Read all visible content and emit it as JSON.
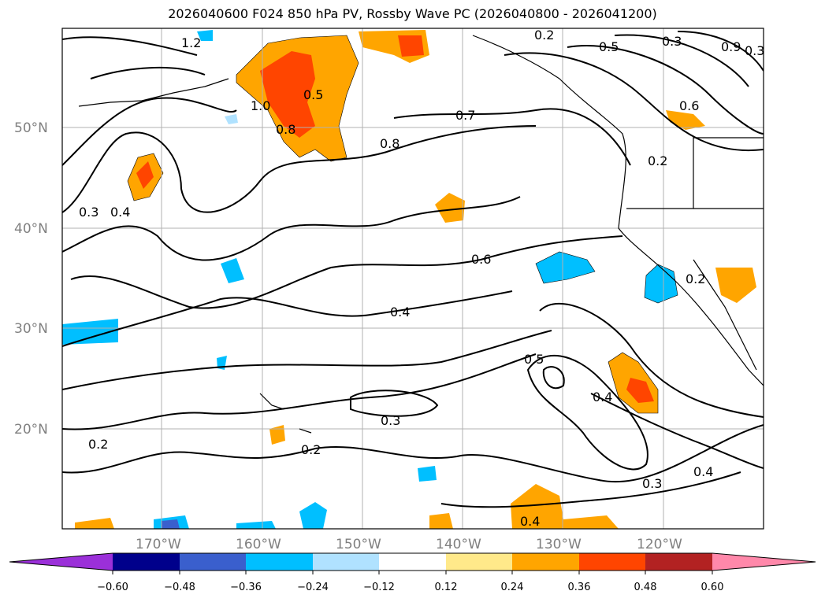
{
  "title": "2026040600 F024 850 hPa PV, Rossby Wave PC (2026040800 - 2026041200)",
  "map": {
    "lat_labels": [
      "50°N",
      "40°N",
      "30°N",
      "20°N"
    ],
    "lon_labels": [
      "170°W",
      "160°W",
      "150°W",
      "140°W",
      "130°W",
      "120°W"
    ],
    "contour_labels": [
      "1.2",
      "0.5",
      "0.8",
      "0.7",
      "0.9",
      "0.3",
      "1.0",
      "0.6",
      "0.8",
      "0.2",
      "0.4",
      "0.3",
      "0.4",
      "0.6",
      "0.2",
      "0.4",
      "0.5",
      "0.4",
      "0.3",
      "0.2",
      "0.2",
      "0.3",
      "0.4",
      "0.2",
      "0.5",
      "0.3"
    ]
  },
  "colorbar": {
    "tick_labels": [
      "−0.60",
      "−0.48",
      "−0.36",
      "−0.24",
      "−0.12",
      "0.12",
      "0.24",
      "0.36",
      "0.48",
      "0.60"
    ],
    "colors": [
      "#9b30d9",
      "#00008b",
      "#3a5fcd",
      "#00bfff",
      "#b0e2ff",
      "#ffffff",
      "#ffe98a",
      "#ffa500",
      "#ff4500",
      "#b22222",
      "#ff88aa"
    ]
  }
}
